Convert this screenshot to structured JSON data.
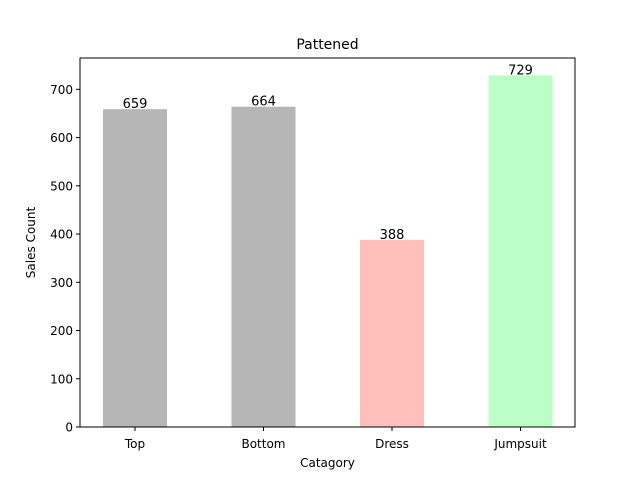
{
  "chart_data": {
    "type": "bar",
    "title": "Pattened",
    "xlabel": "Catagory",
    "ylabel": "Sales Count",
    "categories": [
      "Top",
      "Bottom",
      "Dress",
      "Jumpsuit"
    ],
    "values": [
      659,
      664,
      388,
      729
    ],
    "data_labels": [
      "659",
      "664",
      "388",
      "729"
    ],
    "bar_colors": [
      "#b6b6b6",
      "#b6b6b6",
      "#ffc0bb",
      "#bbffc7"
    ],
    "ylim": [
      0,
      765
    ],
    "yticks": [
      0,
      100,
      200,
      300,
      400,
      500,
      600,
      700
    ],
    "ytick_labels": [
      "0",
      "100",
      "200",
      "300",
      "400",
      "500",
      "600",
      "700"
    ],
    "grid": false,
    "legend": "none"
  }
}
